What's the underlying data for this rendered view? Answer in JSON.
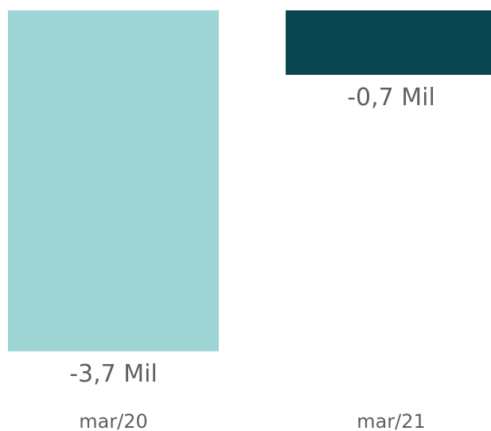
{
  "chart_data": {
    "type": "bar",
    "categories": [
      "mar/20",
      "mar/21"
    ],
    "values": [
      -3.7,
      -0.7
    ],
    "data_labels": [
      "-3,7 Mil",
      "-0,7 Mil"
    ],
    "colors": [
      "#9dd4d4",
      "#0a4650"
    ],
    "ylim": [
      -3.7,
      0
    ],
    "grid": false,
    "legend": "none"
  }
}
